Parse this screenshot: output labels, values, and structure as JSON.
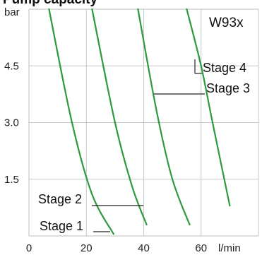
{
  "title_fragment": "Pump capacity",
  "model_label": "W93x",
  "chart_data": {
    "type": "line",
    "title": "",
    "xlabel": "l/min",
    "ylabel": "bar",
    "xlim": [
      0,
      80
    ],
    "ylim": [
      0,
      6
    ],
    "x_ticks": [
      0,
      20,
      40,
      60
    ],
    "y_ticks": [
      1.5,
      3.0,
      4.5
    ],
    "x_tick_labels": [
      "0",
      "20",
      "40",
      "60"
    ],
    "y_tick_labels": [
      "1.5",
      "3.0",
      "4.5"
    ],
    "grid": true,
    "legend": "none",
    "series": [
      {
        "name": "Stage 1",
        "points": [
          [
            7,
            6.0
          ],
          [
            15,
            3.0
          ],
          [
            22,
            1.1
          ],
          [
            29.5,
            0.05
          ]
        ]
      },
      {
        "name": "Stage 2",
        "points": [
          [
            22,
            6.0
          ],
          [
            30,
            3.0
          ],
          [
            36,
            1.3
          ],
          [
            41,
            0.3
          ]
        ]
      },
      {
        "name": "Stage 3",
        "points": [
          [
            38,
            6.0
          ],
          [
            44.5,
            3.3
          ],
          [
            50,
            1.5
          ],
          [
            56,
            0.3
          ]
        ]
      },
      {
        "name": "Stage 4",
        "points": [
          [
            55,
            6.0
          ],
          [
            60,
            4.5
          ],
          [
            64,
            3.0
          ],
          [
            70,
            0.8
          ]
        ]
      }
    ],
    "annotations": [
      {
        "text": "Stage 1",
        "series": 0
      },
      {
        "text": "Stage 2",
        "series": 1
      },
      {
        "text": "Stage 3",
        "series": 2
      },
      {
        "text": "Stage 4",
        "series": 3
      }
    ],
    "colors": {
      "line": "#2e9a3e",
      "grid": "#c8c8c8",
      "leader": "#222222"
    }
  }
}
